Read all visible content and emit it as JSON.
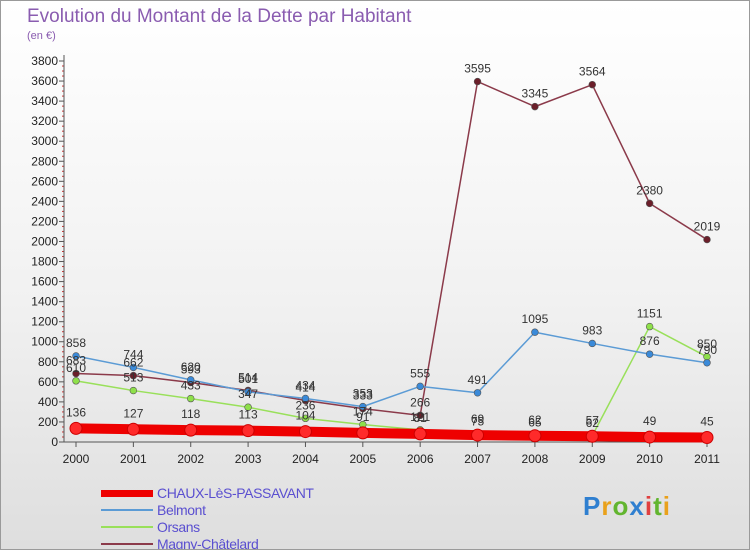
{
  "chart_data": {
    "type": "line",
    "title": "Evolution du Montant de la Dette par Habitant",
    "ylabel": "(en €)",
    "xlabel": "",
    "x": [
      "2000",
      "2001",
      "2002",
      "2003",
      "2004",
      "2005",
      "2006",
      "2007",
      "2008",
      "2009",
      "2010",
      "2011"
    ],
    "ylim": [
      0,
      3800
    ],
    "ytick_step": 200,
    "grid": false,
    "legend_position": "bottom-left",
    "series": [
      {
        "name": "CHAUX-LèS-PASSAVANT",
        "color": "#ee0000",
        "marker": "#ff2a2a",
        "values": [
          136,
          127,
          118,
          113,
          104,
          91,
          81,
          69,
          62,
          57,
          49,
          45
        ]
      },
      {
        "name": "Belmont",
        "color": "#5b9bd5",
        "marker": "#3a8ad9",
        "values": [
          858,
          744,
          620,
          501,
          434,
          353,
          555,
          491,
          1095,
          983,
          876,
          790
        ]
      },
      {
        "name": "Orsans",
        "color": "#99e05a",
        "marker": "#8ee04a",
        "values": [
          610,
          513,
          433,
          347,
          236,
          174,
          121,
          75,
          65,
          62,
          1151,
          850
        ]
      },
      {
        "name": "Magny-Châtelard",
        "color": "#8b3a4a",
        "marker": "#6b1f2a",
        "values": [
          683,
          662,
          593,
          514,
          414,
          333,
          266,
          3595,
          3345,
          3564,
          2380,
          2019
        ]
      }
    ]
  }
}
